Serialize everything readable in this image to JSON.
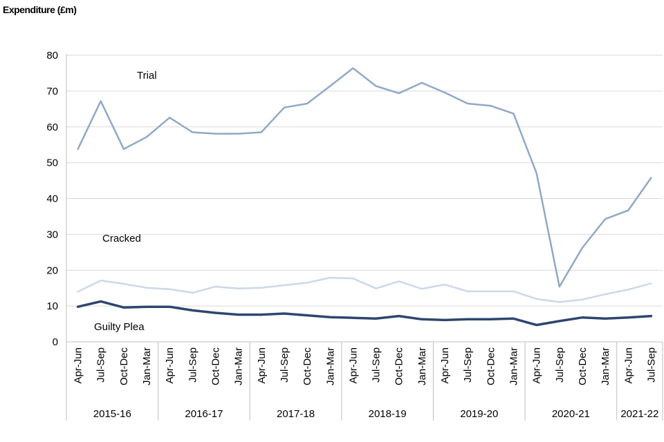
{
  "chart_data": {
    "type": "line",
    "title": "Expenditure (£m)",
    "ylabel": "Expenditure (£m)",
    "ylim": [
      0,
      80
    ],
    "yticks": [
      "0",
      "10",
      "20",
      "30",
      "40",
      "50",
      "60",
      "70",
      "80"
    ],
    "grid": true,
    "categories": [
      "Apr-Jun",
      "Jul-Sep",
      "Oct-Dec",
      "Jan-Mar",
      "Apr-Jun",
      "Jul-Sep",
      "Oct-Dec",
      "Jan-Mar",
      "Apr-Jun",
      "Jul-Sep",
      "Oct-Dec",
      "Jan-Mar",
      "Apr-Jun",
      "Jul-Sep",
      "Oct-Dec",
      "Jan-Mar",
      "Apr-Jun",
      "Jul-Sep",
      "Oct-Dec",
      "Jan-Mar",
      "Apr-Jun",
      "Jul-Sep",
      "Oct-Dec",
      "Jan-Mar",
      "Apr-Jun",
      "Jul-Sep"
    ],
    "groups": [
      {
        "label": "2015-16",
        "count": 4
      },
      {
        "label": "2016-17",
        "count": 4
      },
      {
        "label": "2017-18",
        "count": 4
      },
      {
        "label": "2018-19",
        "count": 4
      },
      {
        "label": "2019-20",
        "count": 4
      },
      {
        "label": "2020-21",
        "count": 4
      },
      {
        "label": "2021-22",
        "count": 2
      }
    ],
    "series": [
      {
        "name": "Trial",
        "color": "#8fa8c8",
        "width": 2.5,
        "values": [
          53.8,
          67.2,
          53.8,
          57.2,
          62.6,
          58.5,
          58.1,
          58.1,
          58.5,
          65.4,
          66.5,
          71.4,
          76.4,
          71.4,
          69.4,
          72.3,
          69.6,
          66.5,
          65.9,
          63.7,
          47.1,
          15.4,
          26.3,
          34.3,
          36.7,
          45.8
        ]
      },
      {
        "name": "Cracked",
        "color": "#cdd7e8",
        "width": 2.5,
        "values": [
          14.0,
          17.1,
          16.2,
          15.1,
          14.7,
          13.7,
          15.4,
          14.9,
          15.1,
          15.8,
          16.5,
          17.9,
          17.7,
          14.9,
          16.9,
          14.8,
          16.0,
          14.1,
          14.1,
          14.1,
          12.0,
          11.1,
          11.8,
          13.3,
          14.6,
          16.3
        ]
      },
      {
        "name": "Guilty Plea",
        "color": "#2e4570",
        "width": 3.5,
        "values": [
          9.8,
          11.3,
          9.6,
          9.8,
          9.8,
          8.8,
          8.1,
          7.6,
          7.6,
          7.9,
          7.4,
          6.9,
          6.7,
          6.5,
          7.2,
          6.3,
          6.1,
          6.3,
          6.3,
          6.5,
          4.7,
          5.8,
          6.8,
          6.5,
          6.8,
          7.2
        ]
      }
    ],
    "annotations": [
      {
        "series": "Trial",
        "text": "Trial"
      },
      {
        "series": "Cracked",
        "text": "Cracked"
      },
      {
        "series": "Guilty Plea",
        "text": "Guilty Plea"
      }
    ]
  }
}
